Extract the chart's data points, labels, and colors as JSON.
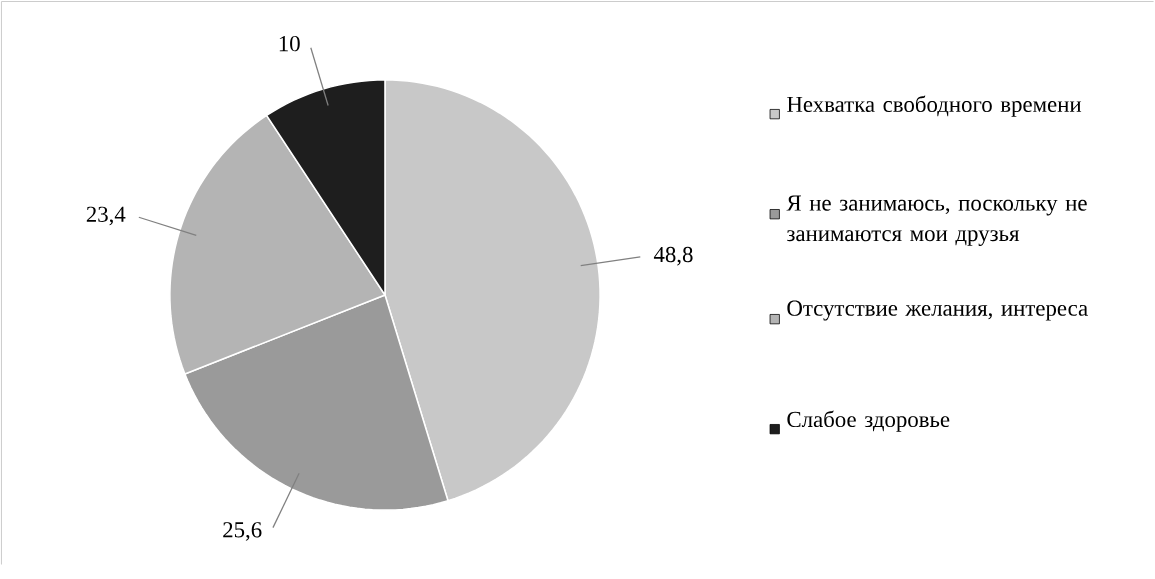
{
  "chart_data": {
    "type": "pie",
    "categories": [
      "Нехватка свободного времени",
      "Я не занимаюсь, поскольку не занимаются мои друзья",
      "Отсутствие желания, интереса",
      "Слабое здоровье"
    ],
    "values": [
      48.8,
      25.6,
      23.4,
      10
    ],
    "value_labels": [
      "48,8",
      "25,6",
      "23,4",
      "10"
    ],
    "colors": [
      "#c8c8c8",
      "#9a9a9a",
      "#b4b4b4",
      "#1e1e1e"
    ],
    "legend": "right"
  }
}
